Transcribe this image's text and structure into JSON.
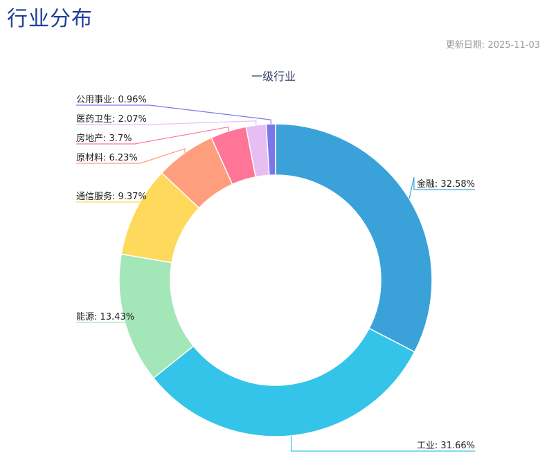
{
  "page": {
    "title": "行业分布",
    "update_label": "更新日期:",
    "update_date": "2025-11-03"
  },
  "chart_data": {
    "type": "pie",
    "subtype": "donut",
    "title": "一级行业",
    "categories": [
      "金融",
      "工业",
      "能源",
      "通信服务",
      "原材料",
      "房地产",
      "医药卫生",
      "公用事业"
    ],
    "values": [
      32.58,
      31.66,
      13.43,
      9.37,
      6.23,
      3.7,
      2.07,
      0.96
    ],
    "unit": "%",
    "colors": [
      "#3aa2d9",
      "#34c4e9",
      "#a3e6b8",
      "#ffd95c",
      "#ff9e7d",
      "#ff7597",
      "#e7bdf2",
      "#7b77e8"
    ],
    "start_angle": "12 o'clock",
    "direction": "clockwise",
    "legend": "none"
  }
}
